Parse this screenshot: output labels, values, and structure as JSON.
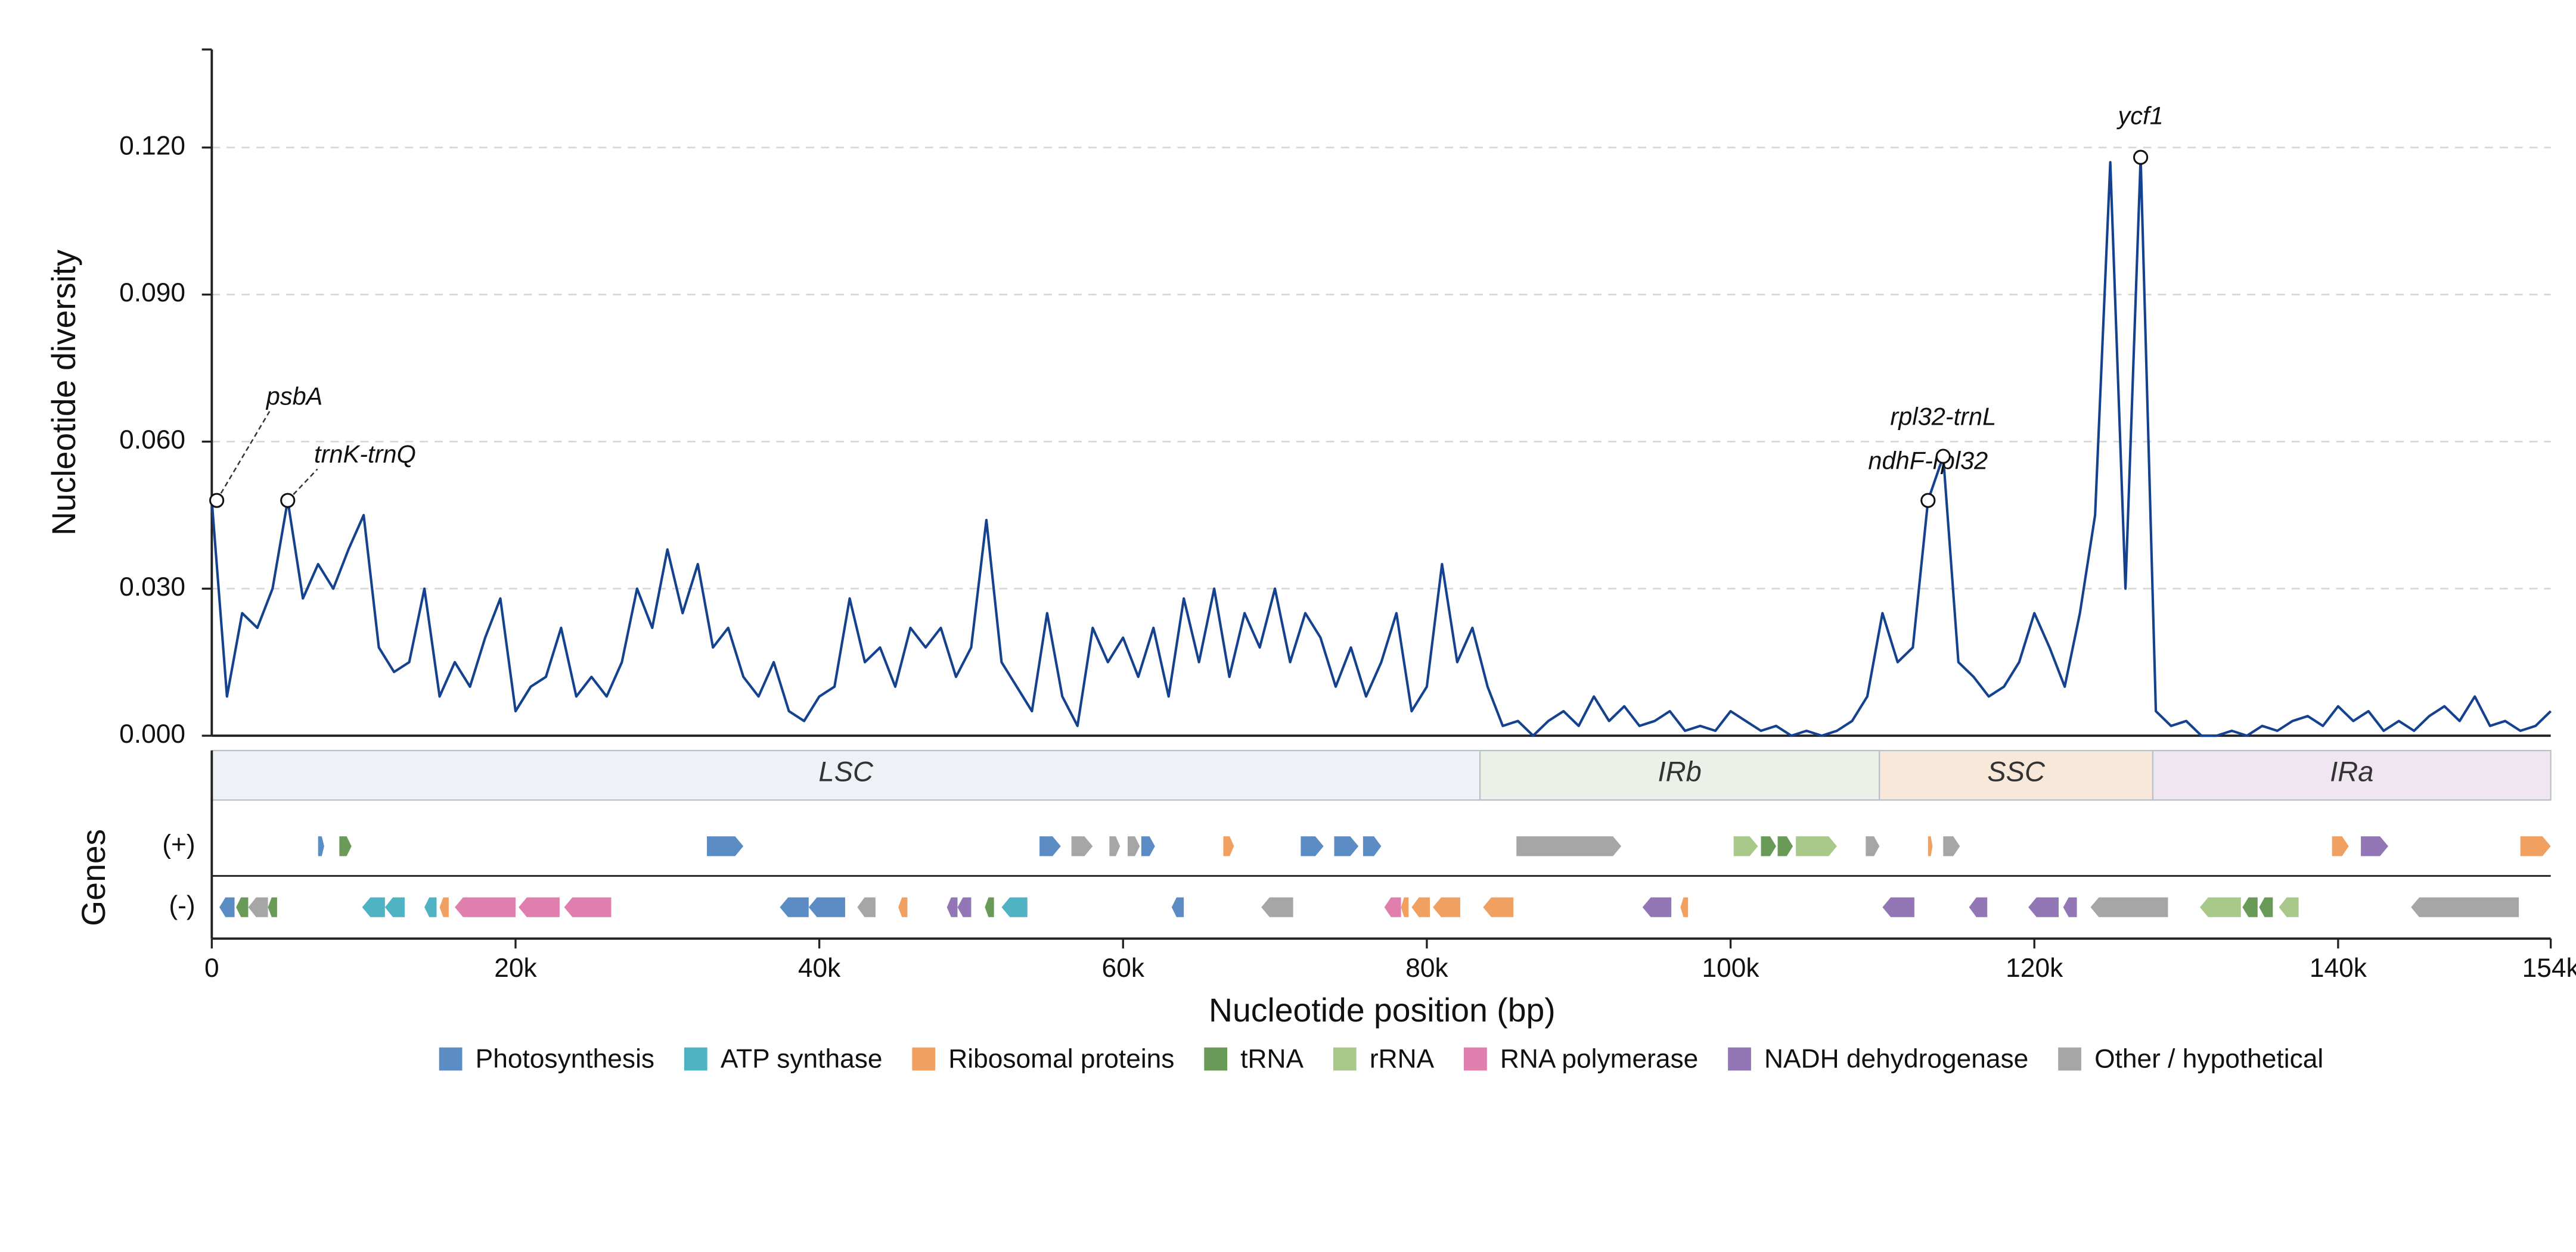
{
  "chart_data": {
    "type": "line",
    "ylabel": "Nucleotide diversity",
    "xlabel": "Nucleotide position (bp)",
    "track_title": "Genes",
    "color": "#15428f",
    "grid": true,
    "xlim": [
      0,
      154000
    ],
    "ylim": [
      0,
      0.14
    ],
    "xticks": [
      0,
      {
        "value": 20000,
        "label": "20k"
      },
      {
        "value": 40000,
        "label": "40k"
      },
      {
        "value": 60000,
        "label": "60k"
      },
      {
        "value": 80000,
        "label": "80k"
      },
      {
        "value": 100000,
        "label": "100k"
      },
      {
        "value": 120000,
        "label": "120k"
      },
      {
        "value": 140000,
        "label": "140k"
      },
      {
        "value": 154000,
        "label": "154k"
      }
    ],
    "yticks": [
      {
        "value": 0,
        "label": "0.000"
      },
      {
        "value": 0.03,
        "label": "0.030"
      },
      {
        "value": 0.06,
        "label": "0.060"
      },
      {
        "value": 0.09,
        "label": "0.090"
      },
      {
        "value": 0.12,
        "label": "0.120"
      }
    ],
    "x": [
      0,
      1000,
      2000,
      3000,
      4000,
      5000,
      6000,
      7000,
      8000,
      9000,
      10000,
      11000,
      12000,
      13000,
      14000,
      15000,
      16000,
      17000,
      18000,
      19000,
      20000,
      21000,
      22000,
      23000,
      24000,
      25000,
      26000,
      27000,
      28000,
      29000,
      30000,
      31000,
      32000,
      33000,
      34000,
      35000,
      36000,
      37000,
      38000,
      39000,
      40000,
      41000,
      42000,
      43000,
      44000,
      45000,
      46000,
      47000,
      48000,
      49000,
      50000,
      51000,
      52000,
      53000,
      54000,
      55000,
      56000,
      57000,
      58000,
      59000,
      60000,
      61000,
      62000,
      63000,
      64000,
      65000,
      66000,
      67000,
      68000,
      69000,
      70000,
      71000,
      72000,
      73000,
      74000,
      75000,
      76000,
      77000,
      78000,
      79000,
      80000,
      81000,
      82000,
      83000,
      84000,
      85000,
      86000,
      87000,
      88000,
      89000,
      90000,
      91000,
      92000,
      93000,
      94000,
      95000,
      96000,
      97000,
      98000,
      99000,
      100000,
      101000,
      102000,
      103000,
      104000,
      105000,
      106000,
      107000,
      108000,
      109000,
      110000,
      111000,
      112000,
      113000,
      114000,
      115000,
      116000,
      117000,
      118000,
      119000,
      120000,
      121000,
      122000,
      123000,
      124000,
      125000,
      126000,
      127000,
      128000,
      129000,
      130000,
      131000,
      132000,
      133000,
      134000,
      135000,
      136000,
      137000,
      138000,
      139000,
      140000,
      141000,
      142000,
      143000,
      144000,
      145000,
      146000,
      147000,
      148000,
      149000,
      150000,
      151000,
      152000,
      153000,
      154000
    ],
    "values": [
      0.048,
      0.008,
      0.025,
      0.022,
      0.03,
      0.048,
      0.028,
      0.035,
      0.03,
      0.038,
      0.045,
      0.018,
      0.013,
      0.015,
      0.03,
      0.008,
      0.015,
      0.01,
      0.02,
      0.028,
      0.005,
      0.01,
      0.012,
      0.022,
      0.008,
      0.012,
      0.008,
      0.015,
      0.03,
      0.022,
      0.038,
      0.025,
      0.035,
      0.018,
      0.022,
      0.012,
      0.008,
      0.015,
      0.005,
      0.003,
      0.008,
      0.01,
      0.028,
      0.015,
      0.018,
      0.01,
      0.022,
      0.018,
      0.022,
      0.012,
      0.018,
      0.044,
      0.015,
      0.01,
      0.005,
      0.025,
      0.008,
      0.002,
      0.022,
      0.015,
      0.02,
      0.012,
      0.022,
      0.008,
      0.028,
      0.015,
      0.03,
      0.012,
      0.025,
      0.018,
      0.03,
      0.015,
      0.025,
      0.02,
      0.01,
      0.018,
      0.008,
      0.015,
      0.025,
      0.005,
      0.01,
      0.035,
      0.015,
      0.022,
      0.01,
      0.002,
      0.003,
      0,
      0.003,
      0.005,
      0.002,
      0.008,
      0.003,
      0.006,
      0.002,
      0.003,
      0.005,
      0.001,
      0.002,
      0.001,
      0.005,
      0.003,
      0.001,
      0.002,
      0,
      0.001,
      0,
      0.001,
      0.003,
      0.008,
      0.025,
      0.015,
      0.018,
      0.048,
      0.057,
      0.015,
      0.012,
      0.008,
      0.01,
      0.015,
      0.025,
      0.018,
      0.01,
      0.025,
      0.045,
      0.117,
      0.03,
      0.118,
      0.005,
      0.002,
      0.003,
      0,
      0,
      0.001,
      0,
      0.002,
      0.001,
      0.003,
      0.004,
      0.002,
      0.006,
      0.003,
      0.005,
      0.001,
      0.003,
      0.001,
      0.004,
      0.006,
      0.003,
      0.008,
      0.002,
      0.003,
      0.001,
      0.002,
      0.005
    ],
    "annotations": [
      {
        "text": "psbA",
        "x": 0,
        "y": 0.048
      },
      {
        "text": "trnK-trnQ",
        "x": 5000,
        "y": 0.048
      },
      {
        "text": "ndhF-rpl32",
        "x": 113000,
        "y": 0.048
      },
      {
        "text": "rpl32-trnL",
        "x": 114000,
        "y": 0.057
      },
      {
        "text": "ycf1",
        "x": 127000,
        "y": 0.118
      }
    ],
    "regions": [
      {
        "name": "LSC",
        "start": 0,
        "end": 83500,
        "color": "#eef2f6"
      },
      {
        "name": "IRb",
        "start": 83500,
        "end": 109800,
        "color": "#ebf1e9"
      },
      {
        "name": "SSC",
        "start": 109800,
        "end": 127800,
        "color": "#f8e8da"
      },
      {
        "name": "IRa",
        "start": 127800,
        "end": 154000,
        "color": "#efe6f1"
      }
    ],
    "legend": [
      {
        "name": "Photosynthesis",
        "color": "#5b8cc4"
      },
      {
        "name": "ATP synthase",
        "color": "#4fb3c4"
      },
      {
        "name": "Ribosomal proteins",
        "color": "#f0a060"
      },
      {
        "name": "tRNA",
        "color": "#6a9a58"
      },
      {
        "name": "rRNA",
        "color": "#a9c98a"
      },
      {
        "name": "RNA polymerase",
        "color": "#e07fae"
      },
      {
        "name": "NADH dehydrogenase",
        "color": "#9276b5"
      },
      {
        "name": "Other / hypothetical",
        "color": "#a6a6a6"
      }
    ],
    "gene_tracks": [
      {
        "label": "(+)",
        "genes": [
          {
            "start": 7000,
            "end": 7400,
            "category": "Photosynthesis"
          },
          {
            "start": 8400,
            "end": 9200,
            "category": "tRNA"
          },
          {
            "start": 32600,
            "end": 35000,
            "category": "Photosynthesis"
          },
          {
            "start": 54500,
            "end": 55900,
            "category": "Photosynthesis"
          },
          {
            "start": 56600,
            "end": 58000,
            "category": "Other / hypothetical"
          },
          {
            "start": 59100,
            "end": 59800,
            "category": "Other / hypothetical"
          },
          {
            "start": 60300,
            "end": 61100,
            "category": "Other / hypothetical"
          },
          {
            "start": 61200,
            "end": 62100,
            "category": "Photosynthesis"
          },
          {
            "start": 66600,
            "end": 67300,
            "category": "Ribosomal proteins"
          },
          {
            "start": 71700,
            "end": 73200,
            "category": "Photosynthesis"
          },
          {
            "start": 73900,
            "end": 75500,
            "category": "Photosynthesis"
          },
          {
            "start": 75800,
            "end": 77000,
            "category": "Photosynthesis"
          },
          {
            "start": 85900,
            "end": 92800,
            "category": "Other / hypothetical"
          },
          {
            "start": 100200,
            "end": 101800,
            "category": "rRNA"
          },
          {
            "start": 102000,
            "end": 103000,
            "category": "tRNA"
          },
          {
            "start": 103100,
            "end": 104100,
            "category": "tRNA"
          },
          {
            "start": 104300,
            "end": 107000,
            "category": "rRNA"
          },
          {
            "start": 108900,
            "end": 109800,
            "category": "Other / hypothetical"
          },
          {
            "start": 113000,
            "end": 113300,
            "category": "Ribosomal proteins"
          },
          {
            "start": 114000,
            "end": 115100,
            "category": "Other / hypothetical"
          },
          {
            "start": 139600,
            "end": 140700,
            "category": "Ribosomal proteins"
          },
          {
            "start": 141500,
            "end": 143300,
            "category": "NADH dehydrogenase"
          },
          {
            "start": 152000,
            "end": 154000,
            "category": "Ribosomal proteins"
          }
        ]
      },
      {
        "label": "(-)",
        "genes": [
          {
            "start": 500,
            "end": 1500,
            "category": "Photosynthesis"
          },
          {
            "start": 1600,
            "end": 2400,
            "category": "tRNA"
          },
          {
            "start": 2400,
            "end": 3700,
            "category": "Other / hypothetical"
          },
          {
            "start": 3700,
            "end": 4300,
            "category": "tRNA"
          },
          {
            "start": 9900,
            "end": 11400,
            "category": "ATP synthase"
          },
          {
            "start": 11400,
            "end": 12700,
            "category": "ATP synthase"
          },
          {
            "start": 14000,
            "end": 14800,
            "category": "ATP synthase"
          },
          {
            "start": 15000,
            "end": 15600,
            "category": "Ribosomal proteins"
          },
          {
            "start": 16000,
            "end": 20000,
            "category": "RNA polymerase"
          },
          {
            "start": 20200,
            "end": 22900,
            "category": "RNA polymerase"
          },
          {
            "start": 23200,
            "end": 26300,
            "category": "RNA polymerase"
          },
          {
            "start": 37400,
            "end": 39300,
            "category": "Photosynthesis"
          },
          {
            "start": 39300,
            "end": 41700,
            "category": "Photosynthesis"
          },
          {
            "start": 42500,
            "end": 43700,
            "category": "Other / hypothetical"
          },
          {
            "start": 45200,
            "end": 45800,
            "category": "Ribosomal proteins"
          },
          {
            "start": 48400,
            "end": 49100,
            "category": "NADH dehydrogenase"
          },
          {
            "start": 49100,
            "end": 50000,
            "category": "NADH dehydrogenase"
          },
          {
            "start": 50900,
            "end": 51500,
            "category": "tRNA"
          },
          {
            "start": 52000,
            "end": 53700,
            "category": "ATP synthase"
          },
          {
            "start": 63200,
            "end": 64000,
            "category": "Photosynthesis"
          },
          {
            "start": 69100,
            "end": 71200,
            "category": "Other / hypothetical"
          },
          {
            "start": 77200,
            "end": 78300,
            "category": "RNA polymerase"
          },
          {
            "start": 78300,
            "end": 78800,
            "category": "Ribosomal proteins"
          },
          {
            "start": 79000,
            "end": 80200,
            "category": "Ribosomal proteins"
          },
          {
            "start": 80400,
            "end": 82200,
            "category": "Ribosomal proteins"
          },
          {
            "start": 83700,
            "end": 85700,
            "category": "Ribosomal proteins"
          },
          {
            "start": 94200,
            "end": 96100,
            "category": "NADH dehydrogenase"
          },
          {
            "start": 96700,
            "end": 97200,
            "category": "Ribosomal proteins"
          },
          {
            "start": 110000,
            "end": 112100,
            "category": "NADH dehydrogenase"
          },
          {
            "start": 115700,
            "end": 116900,
            "category": "NADH dehydrogenase"
          },
          {
            "start": 119600,
            "end": 121600,
            "category": "NADH dehydrogenase"
          },
          {
            "start": 121900,
            "end": 122800,
            "category": "NADH dehydrogenase"
          },
          {
            "start": 123700,
            "end": 128800,
            "category": "Other / hypothetical"
          },
          {
            "start": 130900,
            "end": 133600,
            "category": "rRNA"
          },
          {
            "start": 133700,
            "end": 134700,
            "category": "tRNA"
          },
          {
            "start": 134800,
            "end": 135700,
            "category": "tRNA"
          },
          {
            "start": 136100,
            "end": 137400,
            "category": "rRNA"
          },
          {
            "start": 144800,
            "end": 151900,
            "category": "Other / hypothetical"
          }
        ]
      }
    ]
  }
}
